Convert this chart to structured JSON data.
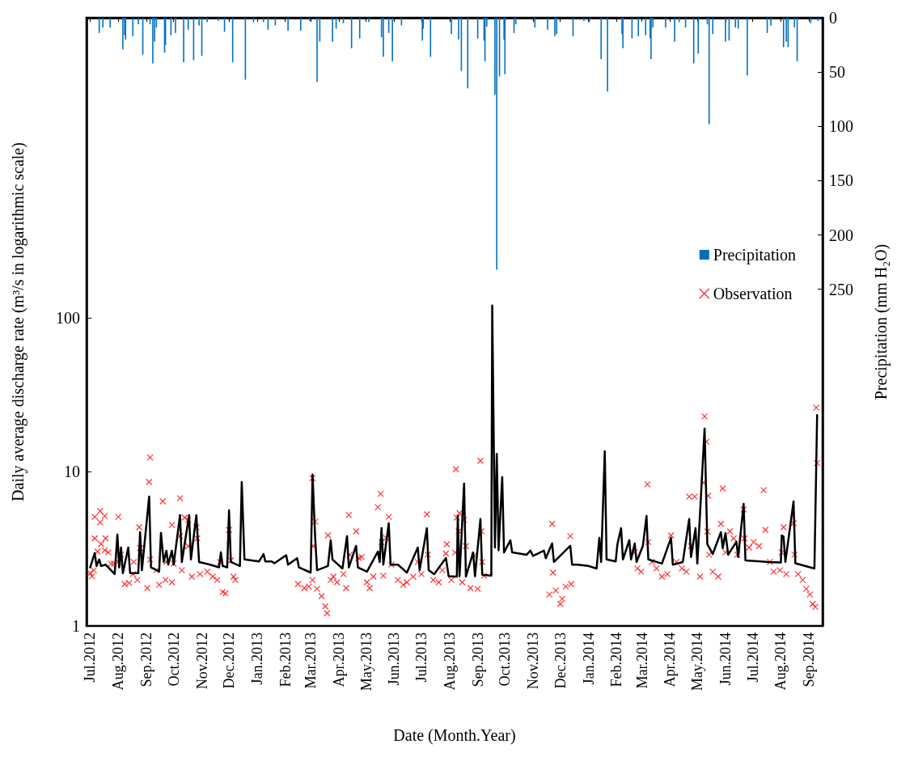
{
  "chart_data": {
    "type": "line",
    "xlabel": "Date (Month.Year)",
    "ylabel": "Daily average discharge rate (m³/s in logarithmic scale)",
    "y2label": "Precipitation (mm H₂O)",
    "log": "y",
    "legend": "right",
    "grid": false,
    "xlim": [
      "2012-06-27",
      "2014-09-16"
    ],
    "xticks": [
      {
        "value": "2012-07-01",
        "label": "Jul.2012"
      },
      {
        "value": "2012-08-01",
        "label": "Aug.2012"
      },
      {
        "value": "2012-09-01",
        "label": "Sep.2012"
      },
      {
        "value": "2012-10-01",
        "label": "Oct.2012"
      },
      {
        "value": "2012-11-01",
        "label": "Nov.2012"
      },
      {
        "value": "2012-12-01",
        "label": "Dec.2012"
      },
      {
        "value": "2013-01-01",
        "label": "Jan.2013"
      },
      {
        "value": "2013-02-01",
        "label": "Feb.2013"
      },
      {
        "value": "2013-03-01",
        "label": "Mar.2013"
      },
      {
        "value": "2013-04-01",
        "label": "Apr.2013"
      },
      {
        "value": "2013-05-01",
        "label": "May.2013"
      },
      {
        "value": "2013-06-01",
        "label": "Jun.2013"
      },
      {
        "value": "2013-07-01",
        "label": "Jul.2013"
      },
      {
        "value": "2013-08-01",
        "label": "Aug.2013"
      },
      {
        "value": "2013-09-01",
        "label": "Sep.2013"
      },
      {
        "value": "2013-10-01",
        "label": "Oct.2013"
      },
      {
        "value": "2013-11-01",
        "label": "Nov.2013"
      },
      {
        "value": "2013-12-01",
        "label": "Dec.2013"
      },
      {
        "value": "2014-01-01",
        "label": "Jan.2014"
      },
      {
        "value": "2014-02-01",
        "label": "Feb.2014"
      },
      {
        "value": "2014-03-01",
        "label": "Mar.2014"
      },
      {
        "value": "2014-04-01",
        "label": "Apr.2014"
      },
      {
        "value": "2014-05-01",
        "label": "May.2014"
      },
      {
        "value": "2014-06-01",
        "label": "Jun.2014"
      },
      {
        "value": "2014-07-01",
        "label": "Jul.2014"
      },
      {
        "value": "2014-08-01",
        "label": "Aug.2014"
      },
      {
        "value": "2014-09-01",
        "label": "Sep.2014"
      }
    ],
    "ylim": [
      1,
      8850
    ],
    "yticks": [
      1,
      10,
      100
    ],
    "y2lim": [
      560,
      0
    ],
    "y2ticks": [
      0,
      50,
      100,
      150,
      200,
      250
    ],
    "series": [
      {
        "name": "Precipitation",
        "type": "bar",
        "axis": "y2",
        "color": "#0070c0",
        "x": [
          "2012-07-11",
          "2012-07-15",
          "2012-07-23",
          "2012-08-06",
          "2012-08-08",
          "2012-08-09",
          "2012-08-17",
          "2012-08-23",
          "2012-08-28",
          "2012-09-05",
          "2012-09-08",
          "2012-09-10",
          "2012-09-12",
          "2012-09-21",
          "2012-09-22",
          "2012-09-28",
          "2012-10-03",
          "2012-10-12",
          "2012-10-17",
          "2012-10-23",
          "2012-10-29",
          "2012-11-01",
          "2012-11-07",
          "2012-11-19",
          "2012-11-26",
          "2012-12-05",
          "2012-12-19",
          "2012-12-28",
          "2013-01-08",
          "2013-01-13",
          "2013-01-21",
          "2013-02-04",
          "2013-02-18",
          "2013-02-28",
          "2013-03-08",
          "2013-03-11",
          "2013-03-25",
          "2013-03-29",
          "2013-04-06",
          "2013-04-15",
          "2013-04-24",
          "2013-05-04",
          "2013-05-18",
          "2013-05-20",
          "2013-05-26",
          "2013-05-30",
          "2013-06-09",
          "2013-07-02",
          "2013-07-03",
          "2013-07-11",
          "2013-08-03",
          "2013-08-11",
          "2013-08-14",
          "2013-08-21",
          "2013-09-01",
          "2013-09-08",
          "2013-09-09",
          "2013-09-11",
          "2013-09-20",
          "2013-09-22",
          "2013-09-25",
          "2013-09-30",
          "2013-10-01",
          "2013-10-11",
          "2013-10-13",
          "2013-11-03",
          "2013-11-17",
          "2013-11-25",
          "2013-11-27",
          "2013-12-15",
          "2013-12-27",
          "2014-01-02",
          "2014-01-15",
          "2014-01-22",
          "2014-02-07",
          "2014-02-08",
          "2014-02-18",
          "2014-02-25",
          "2014-03-05",
          "2014-03-10",
          "2014-03-11",
          "2014-03-13",
          "2014-03-27",
          "2014-04-06",
          "2014-04-11",
          "2014-04-18",
          "2014-04-27",
          "2014-05-02",
          "2014-05-12",
          "2014-05-14",
          "2014-05-18",
          "2014-06-01",
          "2014-06-05",
          "2014-06-12",
          "2014-06-15",
          "2014-06-25",
          "2014-07-17",
          "2014-07-21",
          "2014-08-04",
          "2014-08-07",
          "2014-08-09",
          "2014-08-16",
          "2014-08-19",
          "2014-09-03",
          "2014-09-11"
        ],
        "values": [
          14,
          9,
          9,
          29,
          16,
          20,
          17,
          6,
          34,
          6,
          42,
          22,
          9,
          32,
          25,
          16,
          14,
          41,
          11,
          39,
          7,
          35,
          4,
          3,
          13,
          41,
          57,
          4,
          4,
          11,
          7,
          12,
          12,
          3,
          59,
          22,
          22,
          10,
          5,
          28,
          19,
          4,
          18,
          36,
          14,
          40,
          7,
          21,
          10,
          36,
          15,
          20,
          49,
          65,
          19,
          21,
          40,
          8,
          71,
          232,
          54,
          20,
          52,
          14,
          6,
          9,
          11,
          17,
          15,
          17,
          3,
          4,
          38,
          68,
          15,
          28,
          19,
          17,
          16,
          19,
          38,
          9,
          9,
          22,
          4,
          9,
          42,
          33,
          6,
          98,
          15,
          22,
          21,
          9,
          10,
          53,
          14,
          7,
          27,
          22,
          27,
          9,
          40,
          5,
          3
        ]
      },
      {
        "color": "#000000",
        "marker": "none",
        "x": [
          "2012-07-01",
          "2012-07-06",
          "2012-07-08",
          "2012-07-11",
          "2012-07-13",
          "2012-07-18",
          "2012-07-28",
          "2012-07-31",
          "2012-08-02",
          "2012-08-04",
          "2012-08-06",
          "2012-08-12",
          "2012-08-14",
          "2012-08-23",
          "2012-08-25",
          "2012-08-27",
          "2012-09-04",
          "2012-09-06",
          "2012-09-15",
          "2012-09-17",
          "2012-09-20",
          "2012-09-23",
          "2012-09-25",
          "2012-09-29",
          "2012-10-01",
          "2012-10-08",
          "2012-10-10",
          "2012-10-18",
          "2012-10-20",
          "2012-10-26",
          "2012-10-29",
          "2012-11-10",
          "2012-11-20",
          "2012-11-22",
          "2012-11-24",
          "2012-11-29",
          "2012-12-01",
          "2012-12-03",
          "2012-12-13",
          "2012-12-15",
          "2012-12-18",
          "2013-01-03",
          "2013-01-08",
          "2013-01-10",
          "2013-01-17",
          "2013-01-20",
          "2013-02-02",
          "2013-02-04",
          "2013-02-14",
          "2013-02-16",
          "2013-03-01",
          "2013-03-03",
          "2013-03-06",
          "2013-03-08",
          "2013-03-20",
          "2013-03-23",
          "2013-03-25",
          "2013-04-05",
          "2013-04-10",
          "2013-04-12",
          "2013-04-20",
          "2013-04-22",
          "2013-05-02",
          "2013-05-14",
          "2013-05-16",
          "2013-05-18",
          "2013-05-20",
          "2013-05-26",
          "2013-05-28",
          "2013-06-05",
          "2013-06-15",
          "2013-06-27",
          "2013-06-29",
          "2013-07-07",
          "2013-07-09",
          "2013-07-15",
          "2013-07-28",
          "2013-07-31",
          "2013-08-09",
          "2013-08-10",
          "2013-08-12",
          "2013-08-17",
          "2013-08-19",
          "2013-08-27",
          "2013-08-29",
          "2013-09-04",
          "2013-09-06",
          "2013-09-16",
          "2013-09-17",
          "2013-09-20",
          "2013-09-22",
          "2013-09-24",
          "2013-09-28",
          "2013-09-30",
          "2013-10-07",
          "2013-10-09",
          "2013-10-25",
          "2013-10-29",
          "2013-11-01",
          "2013-11-13",
          "2013-11-15",
          "2013-11-22",
          "2013-11-24",
          "2013-12-12",
          "2013-12-14",
          "2013-12-20",
          "2014-01-01",
          "2014-01-10",
          "2014-01-13",
          "2014-01-15",
          "2014-01-19",
          "2014-01-21",
          "2014-01-31",
          "2014-02-02",
          "2014-02-06",
          "2014-02-08",
          "2014-02-15",
          "2014-02-17",
          "2014-02-21",
          "2014-02-23",
          "2014-03-02",
          "2014-03-06",
          "2014-03-08",
          "2014-03-23",
          "2014-04-02",
          "2014-04-04",
          "2014-04-15",
          "2014-04-22",
          "2014-04-24",
          "2014-04-29",
          "2014-05-01",
          "2014-05-09",
          "2014-05-12",
          "2014-05-18",
          "2014-05-27",
          "2014-05-29",
          "2014-06-01",
          "2014-06-04",
          "2014-06-13",
          "2014-06-15",
          "2014-06-21",
          "2014-06-23",
          "2014-07-10",
          "2014-07-18",
          "2014-08-01",
          "2014-08-02",
          "2014-08-04",
          "2014-08-06",
          "2014-08-15",
          "2014-08-17",
          "2014-09-07",
          "2014-09-10"
        ],
        "values": [
          2.4,
          2.97,
          2.45,
          2.7,
          2.45,
          2.5,
          2.17,
          3.92,
          2.4,
          3.23,
          2.2,
          3.23,
          2.2,
          2.2,
          4.06,
          2.3,
          6.92,
          2.4,
          2.26,
          4.02,
          2.6,
          3.08,
          2.5,
          3.08,
          2.5,
          5.24,
          2.6,
          5.24,
          2.7,
          5.24,
          2.6,
          2.5,
          2.4,
          3.0,
          2.45,
          2.4,
          5.63,
          2.6,
          2.45,
          8.6,
          2.7,
          2.62,
          2.93,
          2.62,
          2.62,
          2.55,
          2.88,
          2.5,
          2.75,
          2.4,
          2.22,
          9.6,
          3.65,
          2.3,
          2.45,
          3.6,
          2.7,
          2.36,
          3.83,
          2.4,
          3.31,
          2.4,
          2.25,
          3.04,
          2.6,
          4.31,
          2.5,
          4.64,
          2.5,
          2.5,
          2.22,
          3.23,
          2.3,
          4.31,
          2.3,
          2.17,
          2.76,
          2.1,
          2.09,
          5.17,
          2.1,
          8.4,
          2.09,
          3.0,
          2.1,
          4.94,
          2.15,
          2.12,
          120,
          3.23,
          13.1,
          3.1,
          9.25,
          3.0,
          3.6,
          3.0,
          2.9,
          3.08,
          2.85,
          3.08,
          2.75,
          3.43,
          2.6,
          3.31,
          2.5,
          2.5,
          2.45,
          2.36,
          3.73,
          2.6,
          13.6,
          2.7,
          2.62,
          3.4,
          4.31,
          2.7,
          3.6,
          2.7,
          3.43,
          2.6,
          3.31,
          5.17,
          2.7,
          2.54,
          3.73,
          2.5,
          2.6,
          4.94,
          2.8,
          4.31,
          2.54,
          19.1,
          3.39,
          2.93,
          4.06,
          3.2,
          4.0,
          2.9,
          3.52,
          2.8,
          6.2,
          2.66,
          2.62,
          2.6,
          2.58,
          3.87,
          3.8,
          2.6,
          6.43,
          2.55,
          2.36,
          23.4
        ]
      },
      {
        "name": "Observation",
        "type": "scatter",
        "color": "#ff0000",
        "marker": "cross",
        "x": [
          "2012-07-01",
          "2012-07-03",
          "2012-07-05",
          "2012-07-06",
          "2012-07-06",
          "2012-07-09",
          "2012-07-12",
          "2012-07-12",
          "2012-07-13",
          "2012-07-17",
          "2012-07-17",
          "2012-07-18",
          "2012-07-21",
          "2012-07-24",
          "2012-07-27",
          "2012-08-01",
          "2012-08-01",
          "2012-08-04",
          "2012-08-08",
          "2012-08-13",
          "2012-08-17",
          "2012-08-18",
          "2012-08-22",
          "2012-08-24",
          "2012-08-25",
          "2012-09-02",
          "2012-09-04",
          "2012-09-05",
          "2012-09-05",
          "2012-09-12",
          "2012-09-15",
          "2012-09-19",
          "2012-09-22",
          "2012-09-23",
          "2012-09-29",
          "2012-09-29",
          "2012-10-01",
          "2012-10-08",
          "2012-10-08",
          "2012-10-10",
          "2012-10-13",
          "2012-10-17",
          "2012-10-17",
          "2012-10-21",
          "2012-10-26",
          "2012-10-27",
          "2012-10-30",
          "2012-11-07",
          "2012-11-13",
          "2012-11-18",
          "2012-11-21",
          "2012-11-24",
          "2012-11-27",
          "2012-12-01",
          "2012-12-03",
          "2012-12-06",
          "2012-12-08",
          "2013-02-15",
          "2013-02-22",
          "2013-02-27",
          "2013-03-03",
          "2013-03-03",
          "2013-03-04",
          "2013-03-06",
          "2013-03-08",
          "2013-03-13",
          "2013-03-17",
          "2013-03-19",
          "2013-03-20",
          "2013-03-23",
          "2013-03-26",
          "2013-03-30",
          "2013-04-06",
          "2013-04-09",
          "2013-04-12",
          "2013-04-13",
          "2013-04-20",
          "2013-04-23",
          "2013-04-26",
          "2013-05-02",
          "2013-05-05",
          "2013-05-09",
          "2013-05-14",
          "2013-05-17",
          "2013-05-18",
          "2013-05-20",
          "2013-05-23",
          "2013-05-26",
          "2013-05-29",
          "2013-06-05",
          "2013-06-11",
          "2013-06-15",
          "2013-06-22",
          "2013-06-27",
          "2013-07-01",
          "2013-07-07",
          "2013-07-08",
          "2013-07-14",
          "2013-07-20",
          "2013-07-24",
          "2013-07-28",
          "2013-07-29",
          "2013-08-03",
          "2013-08-07",
          "2013-08-08",
          "2013-08-09",
          "2013-08-11",
          "2013-08-12",
          "2013-08-15",
          "2013-08-17",
          "2013-08-19",
          "2013-08-24",
          "2013-08-28",
          "2013-09-01",
          "2013-09-04",
          "2013-09-05",
          "2013-09-06",
          "2013-09-08",
          "2013-11-19",
          "2013-11-22",
          "2013-11-23",
          "2013-11-26",
          "2013-12-01",
          "2013-12-03",
          "2013-12-07",
          "2013-12-12",
          "2013-12-13",
          "2014-02-21",
          "2014-02-24",
          "2014-02-28",
          "2014-03-07",
          "2014-03-08",
          "2014-03-12",
          "2014-03-17",
          "2014-03-23",
          "2014-03-29",
          "2014-04-02",
          "2014-04-08",
          "2014-04-14",
          "2014-04-19",
          "2014-04-22",
          "2014-04-24",
          "2014-04-28",
          "2014-05-04",
          "2014-05-08",
          "2014-05-09",
          "2014-05-11",
          "2014-05-12",
          "2014-05-13",
          "2014-05-14",
          "2014-05-18",
          "2014-05-24",
          "2014-05-27",
          "2014-05-29",
          "2014-06-01",
          "2014-06-06",
          "2014-06-10",
          "2014-06-14",
          "2014-06-21",
          "2014-06-22",
          "2014-06-27",
          "2014-07-02",
          "2014-07-08",
          "2014-07-13",
          "2014-07-15",
          "2014-07-20",
          "2014-07-24",
          "2014-07-31",
          "2014-08-02",
          "2014-08-04",
          "2014-08-07",
          "2014-08-15",
          "2014-08-16",
          "2014-08-20",
          "2014-08-25",
          "2014-08-29",
          "2014-09-02",
          "2014-09-05",
          "2014-09-08",
          "2014-09-09",
          "2014-09-10"
        ],
        "values": [
          2.2,
          2.1,
          2.3,
          5.1,
          3.7,
          3.04,
          5.56,
          4.7,
          3.4,
          5.17,
          3.1,
          3.7,
          3.0,
          2.54,
          2.54,
          5.1,
          2.6,
          2.9,
          1.87,
          1.9,
          2.17,
          2.6,
          1.99,
          4.37,
          3.2,
          1.76,
          8.6,
          12.4,
          2.7,
          2.3,
          1.85,
          6.43,
          1.99,
          2.6,
          1.92,
          4.52,
          2.54,
          6.74,
          3.83,
          2.3,
          5.05,
          4.88,
          3.3,
          2.09,
          4.37,
          3.7,
          2.17,
          2.25,
          2.09,
          1.99,
          2.6,
          1.66,
          1.63,
          4.2,
          2.66,
          2.09,
          1.99,
          1.87,
          1.76,
          1.8,
          1.99,
          9.1,
          3.3,
          4.76,
          1.74,
          1.56,
          1.34,
          1.21,
          3.87,
          1.99,
          2.09,
          1.92,
          2.17,
          1.76,
          5.24,
          2.9,
          4.11,
          2.76,
          2.8,
          1.92,
          1.76,
          2.09,
          5.9,
          7.2,
          3.5,
          2.12,
          3.73,
          5.1,
          2.5,
          1.99,
          1.85,
          1.92,
          2.09,
          2.6,
          2.17,
          5.3,
          2.9,
          1.99,
          1.92,
          2.3,
          2.95,
          3.39,
          1.99,
          3.0,
          10.4,
          5.05,
          4.11,
          5.4,
          1.92,
          4.88,
          3.3,
          1.76,
          2.86,
          1.74,
          11.8,
          4.11,
          2.6,
          2.12,
          1.6,
          4.6,
          2.22,
          1.7,
          1.39,
          1.5,
          1.8,
          3.83,
          1.87,
          3.0,
          2.36,
          2.25,
          8.3,
          3.5,
          2.6,
          2.36,
          2.09,
          2.17,
          3.87,
          2.6,
          2.36,
          2.25,
          6.9,
          3.3,
          6.9,
          2.09,
          8.5,
          22.9,
          15.7,
          4.1,
          7.0,
          2.9,
          2.25,
          2.09,
          4.6,
          7.8,
          3.0,
          4.11,
          3.7,
          2.9,
          5.7,
          3.7,
          3.23,
          3.5,
          3.3,
          7.6,
          4.2,
          2.6,
          2.25,
          2.3,
          3.0,
          4.37,
          2.17,
          4.64,
          2.9,
          2.17,
          1.99,
          1.74,
          1.6,
          1.39,
          1.33,
          26.1,
          11.4
        ]
      }
    ]
  }
}
